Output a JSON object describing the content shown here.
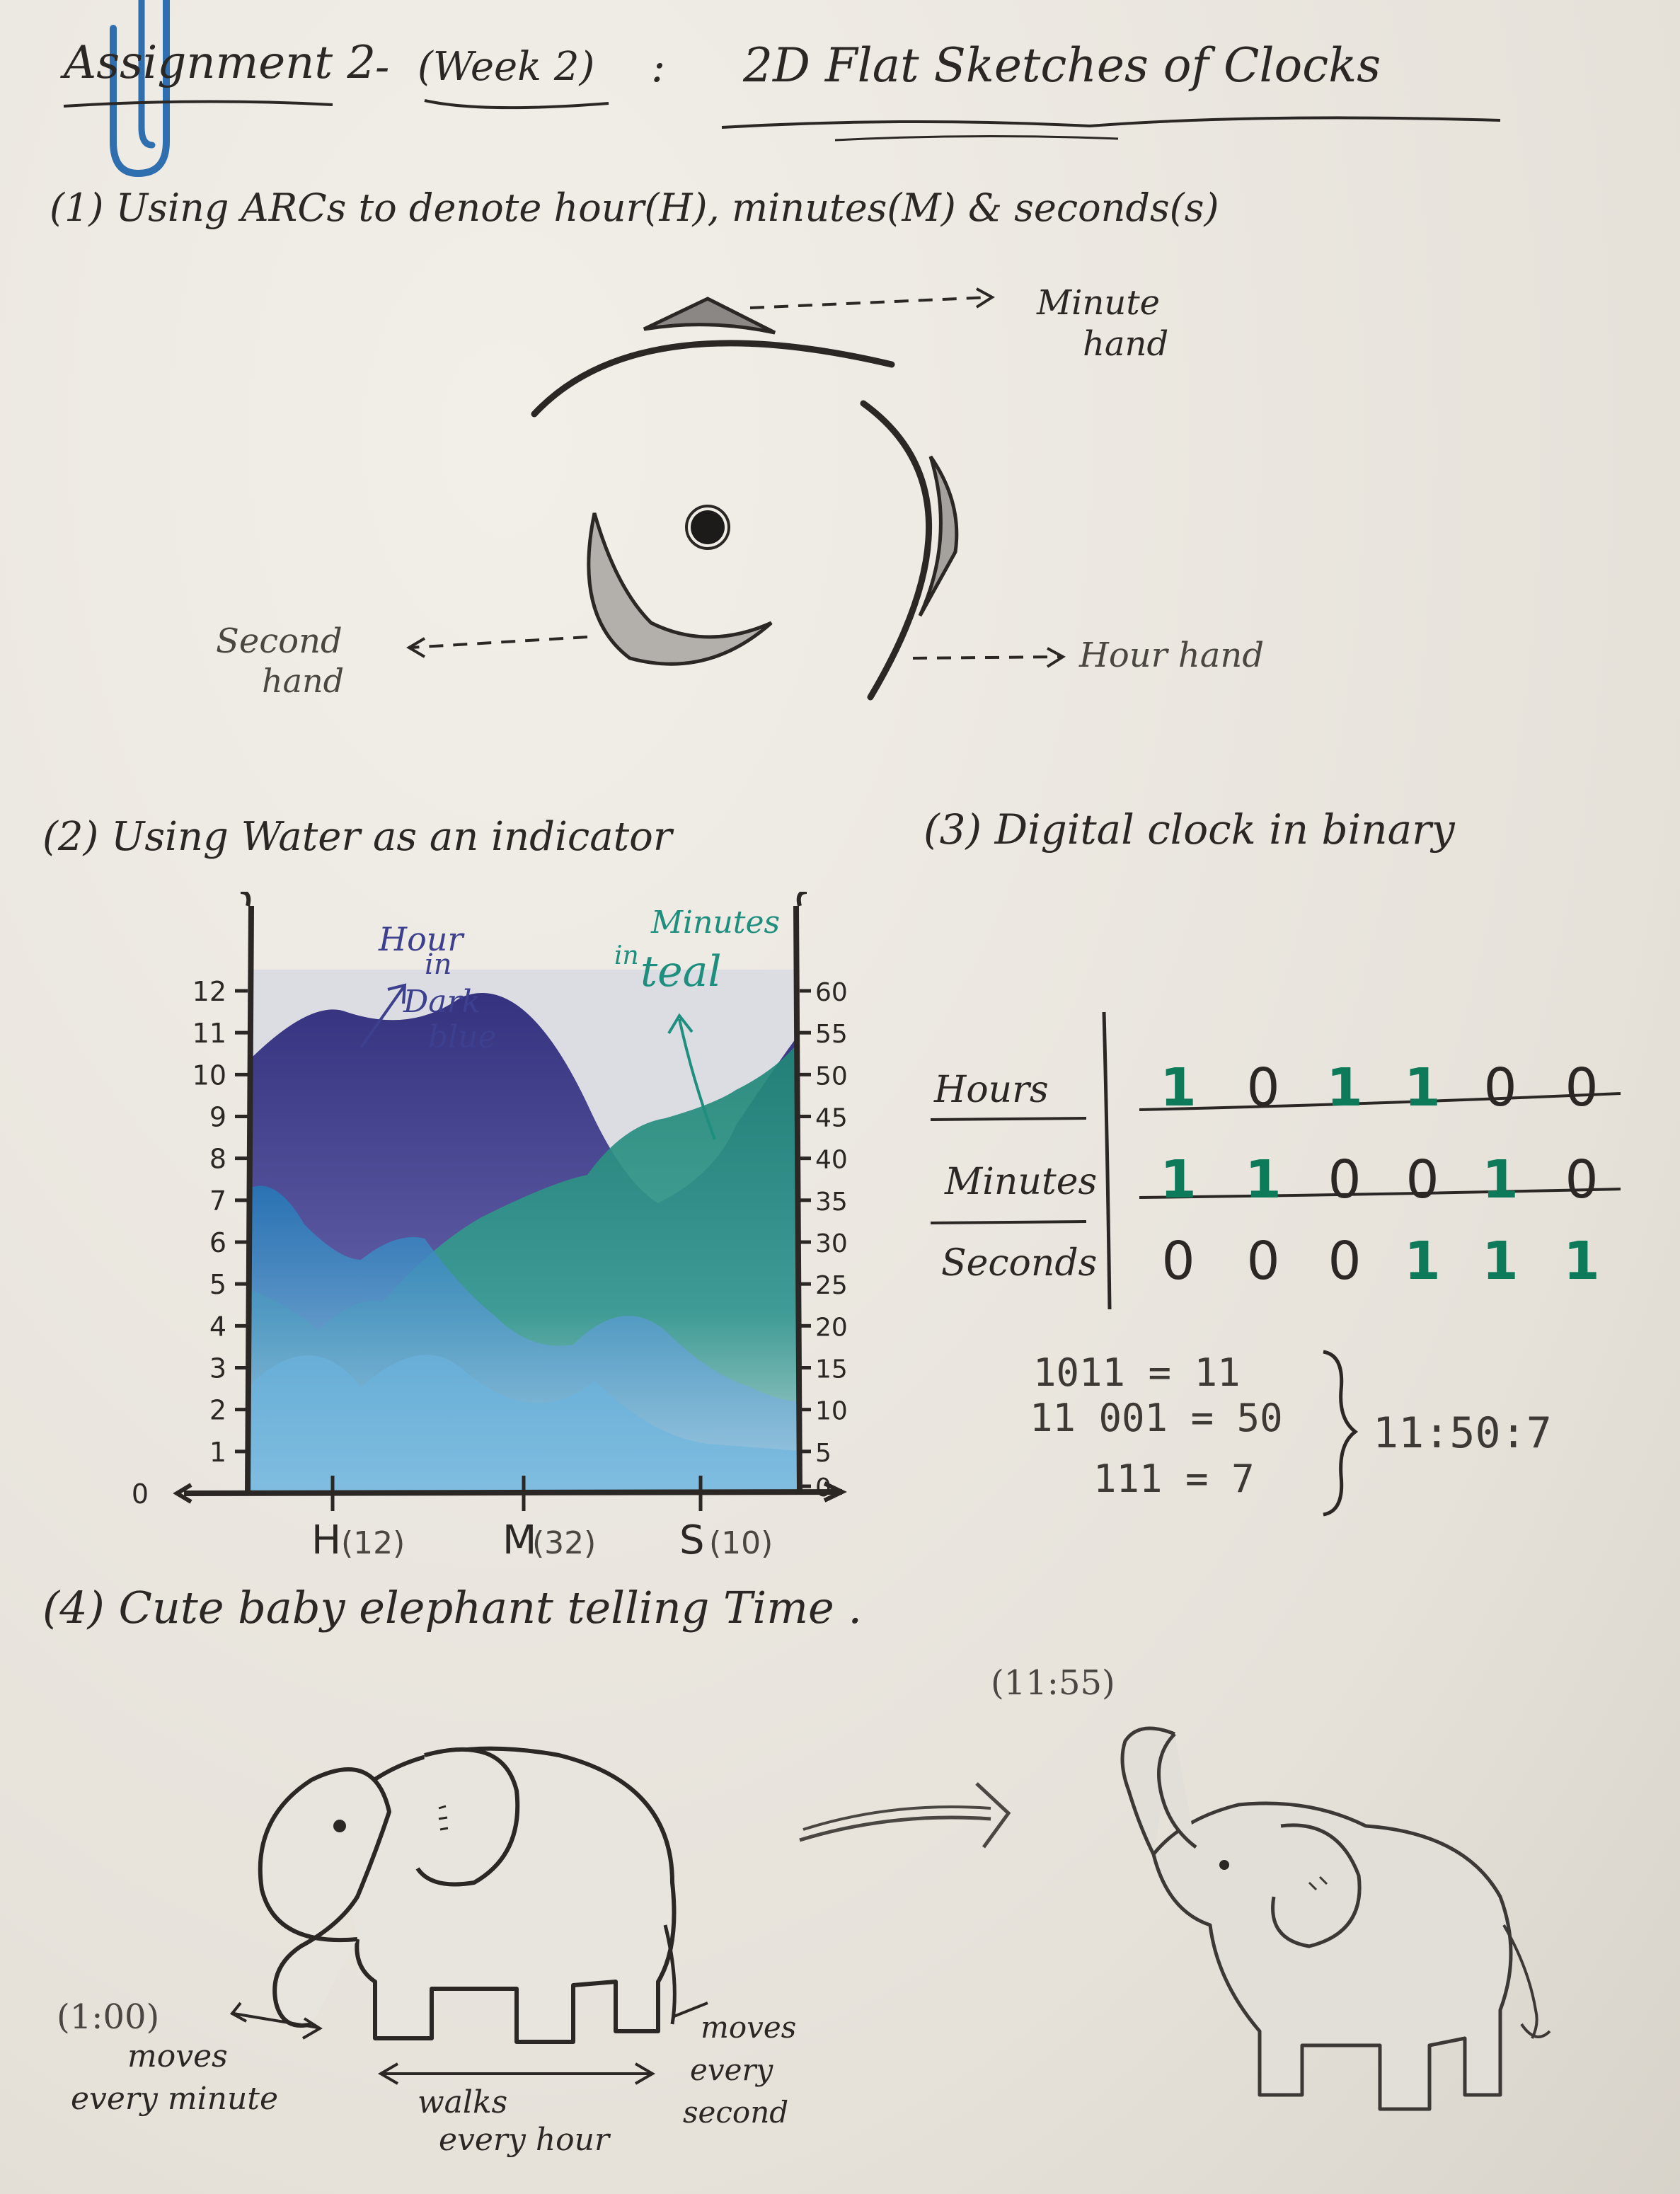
{
  "header": {
    "assignment": "Assignment 2",
    "dash": "-",
    "week": "(Week 2)",
    "colon": ":",
    "title": "2D Flat Sketches of Clocks"
  },
  "section1": {
    "heading": "(1)  Using  ARCs  to denote  hour(H), minutes(M) & seconds(s)",
    "minute_label_1": "Minute",
    "minute_label_2": "hand",
    "second_label_1": "Second",
    "second_label_2": "hand",
    "hour_label": "Hour  hand"
  },
  "section2": {
    "heading": "(2)  Using  Water  as  an  indicator",
    "hour_note_1": "Hour",
    "hour_note_2": "in",
    "hour_note_3": "Dark",
    "hour_note_4": "blue",
    "minute_note_1": "Minutes",
    "minute_note_2": "in",
    "minute_note_3": "teal"
  },
  "chart_data": {
    "type": "area",
    "left_axis_ticks": [
      "0",
      "1",
      "2",
      "3",
      "4",
      "5",
      "6",
      "7",
      "8",
      "9",
      "10",
      "11",
      "12"
    ],
    "right_axis_ticks": [
      "0",
      "5",
      "10",
      "15",
      "20",
      "25",
      "30",
      "35",
      "40",
      "45",
      "50",
      "55",
      "60"
    ],
    "categories": [
      "H",
      "M",
      "S"
    ],
    "category_labels": [
      "(12)",
      "(32)",
      "(10)"
    ],
    "values": [
      12,
      32,
      10
    ],
    "left_ylim": [
      0,
      12
    ],
    "right_ylim": [
      0,
      60
    ],
    "series": [
      {
        "name": "Hour",
        "color": "#3d3f8f",
        "axis": "left"
      },
      {
        "name": "Minutes",
        "color": "#1e8f7e",
        "axis": "right"
      }
    ],
    "colors": {
      "hour": "#3d3f8f",
      "minute": "#1e8f7e",
      "second": "#2b8fc2"
    }
  },
  "section3": {
    "heading": "(3)  Digital  clock  in  binary",
    "rows": [
      {
        "label": "Hours",
        "bits": [
          1,
          0,
          1,
          1,
          0,
          0
        ]
      },
      {
        "label": "Minutes",
        "bits": [
          1,
          1,
          0,
          0,
          1,
          0
        ]
      },
      {
        "label": "Seconds",
        "bits": [
          0,
          0,
          0,
          1,
          1,
          1
        ]
      }
    ],
    "equation_1": "1011  =   11",
    "equation_2": "11 001 =  50",
    "equation_3": "111  =  7",
    "result": "11:50:7",
    "bit_on": "1",
    "bit_off": "0",
    "colors": {
      "on": "#0d7a5a"
    }
  },
  "section4": {
    "heading": "(4)  Cute  baby  elephant  telling  Time .",
    "time_left": "(1:00)",
    "time_right": "(11:55)",
    "trunk_note_1": "moves",
    "trunk_note_2": "every minute",
    "walk_note_1": "walks",
    "walk_note_2": "every hour",
    "tail_note_1": "moves",
    "tail_note_2": "every",
    "tail_note_3": "second"
  }
}
